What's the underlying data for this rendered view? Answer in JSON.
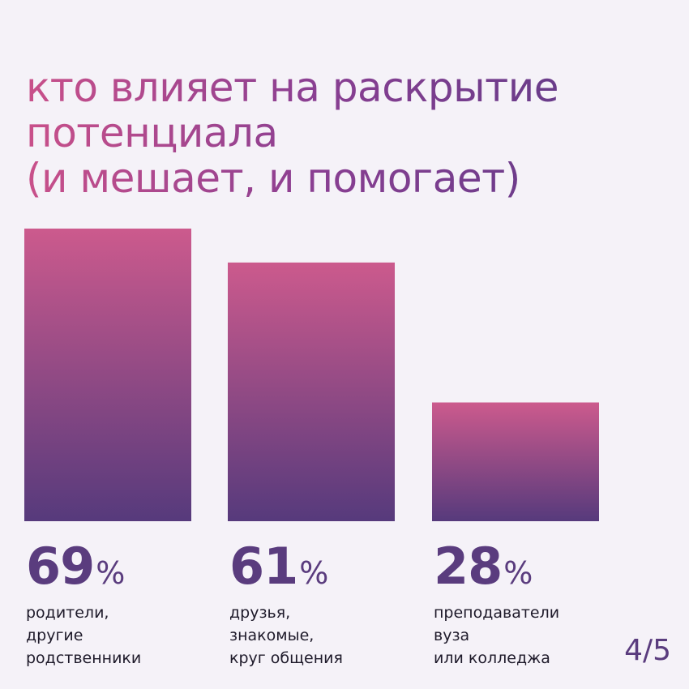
{
  "title": {
    "line1": "кто влияет на раскрытие",
    "line2": "потенциала",
    "line3": "(и мешает, и помогает)"
  },
  "colors": {
    "gradient_top": "#cc5a8d",
    "gradient_bottom": "#563a7c",
    "label": "#5a3c7e",
    "text": "#1e1a2a",
    "background": "#f5f2f8"
  },
  "chart_data": {
    "type": "bar",
    "title": "кто влияет на раскрытие потенциала (и мешает, и помогает)",
    "values": [
      69,
      61,
      28
    ],
    "unit": "%",
    "ylim": [
      0,
      100
    ],
    "grid": false,
    "bars": [
      {
        "value": 69,
        "value_label": "69",
        "unit": "%",
        "category_lines": [
          "родители,",
          "другие",
          "родственники"
        ]
      },
      {
        "value": 61,
        "value_label": "61",
        "unit": "%",
        "category_lines": [
          "друзья,",
          "знакомые,",
          "круг общения"
        ]
      },
      {
        "value": 28,
        "value_label": "28",
        "unit": "%",
        "category_lines": [
          "преподаватели",
          "вуза",
          "или колледжа"
        ]
      }
    ]
  },
  "page_indicator": "4/5"
}
